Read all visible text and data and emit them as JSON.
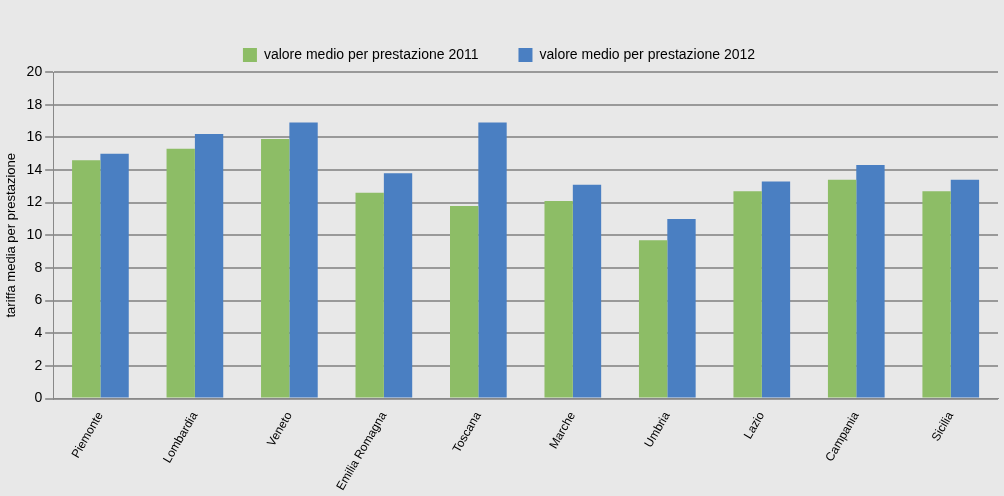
{
  "chart_data": {
    "type": "bar",
    "ylabel": "tariffa media per prestazione",
    "categories": [
      "Piemonte",
      "Lombardia",
      "Veneto",
      "Emilia Romagna",
      "Toscana",
      "Marche",
      "Umbria",
      "Lazio",
      "Campania",
      "Sicilia"
    ],
    "series": [
      {
        "name": "valore medio per prestazione 2011",
        "color": "#8dbd66",
        "values": [
          14.6,
          15.3,
          15.9,
          12.6,
          11.8,
          12.1,
          9.7,
          12.7,
          13.4,
          12.7
        ]
      },
      {
        "name": "valore medio per prestazione 2012",
        "color": "#4a7fc2",
        "values": [
          15.0,
          16.2,
          16.9,
          13.8,
          16.9,
          13.1,
          11.0,
          13.3,
          14.3,
          13.4
        ]
      }
    ],
    "ylim": [
      0,
      20
    ],
    "yticks": [
      0,
      2,
      4,
      6,
      8,
      10,
      12,
      14,
      16,
      18,
      20
    ],
    "grid": "y",
    "legend": "top"
  }
}
